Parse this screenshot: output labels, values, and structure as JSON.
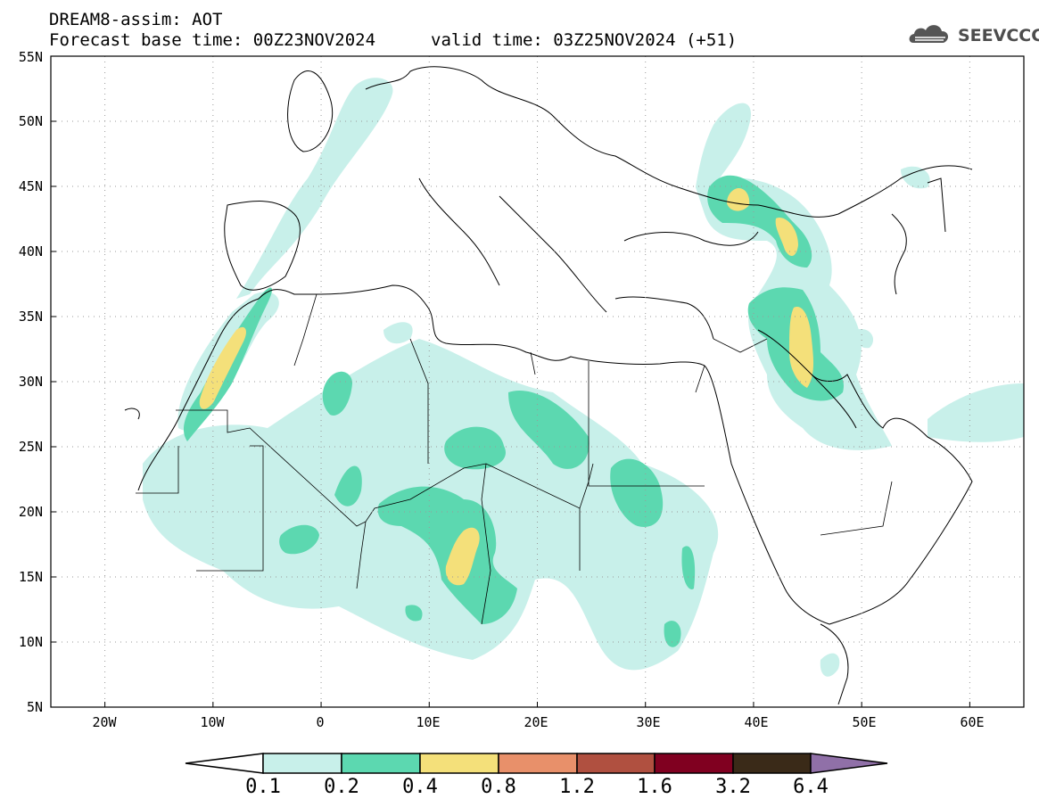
{
  "header": {
    "title": "DREAM8-assim: AOT",
    "base_time": "Forecast base time: 00Z23NOV2024",
    "valid_time": "valid time: 03Z25NOV2024 (+51)"
  },
  "logo": {
    "text": "SEEVCCC",
    "icon": "cloud-icon"
  },
  "map": {
    "lon_range": [
      -25,
      65
    ],
    "lat_range": [
      5,
      55
    ],
    "lat_labels": [
      "55N",
      "50N",
      "45N",
      "40N",
      "35N",
      "30N",
      "25N",
      "20N",
      "15N",
      "10N",
      "5N"
    ],
    "lon_labels": [
      "20W",
      "10W",
      "0",
      "10E",
      "20E",
      "30E",
      "40E",
      "50E",
      "60E"
    ],
    "grid": "dotted"
  },
  "colorbar": {
    "labels": [
      "0.1",
      "0.2",
      "0.4",
      "0.8",
      "1.2",
      "1.6",
      "3.2",
      "6.4"
    ],
    "colors": [
      "#ffffff",
      "#c8f0ea",
      "#5cd8b0",
      "#f4e07a",
      "#e8906a",
      "#b05040",
      "#800020",
      "#3a2a18",
      "#9070a8"
    ]
  }
}
